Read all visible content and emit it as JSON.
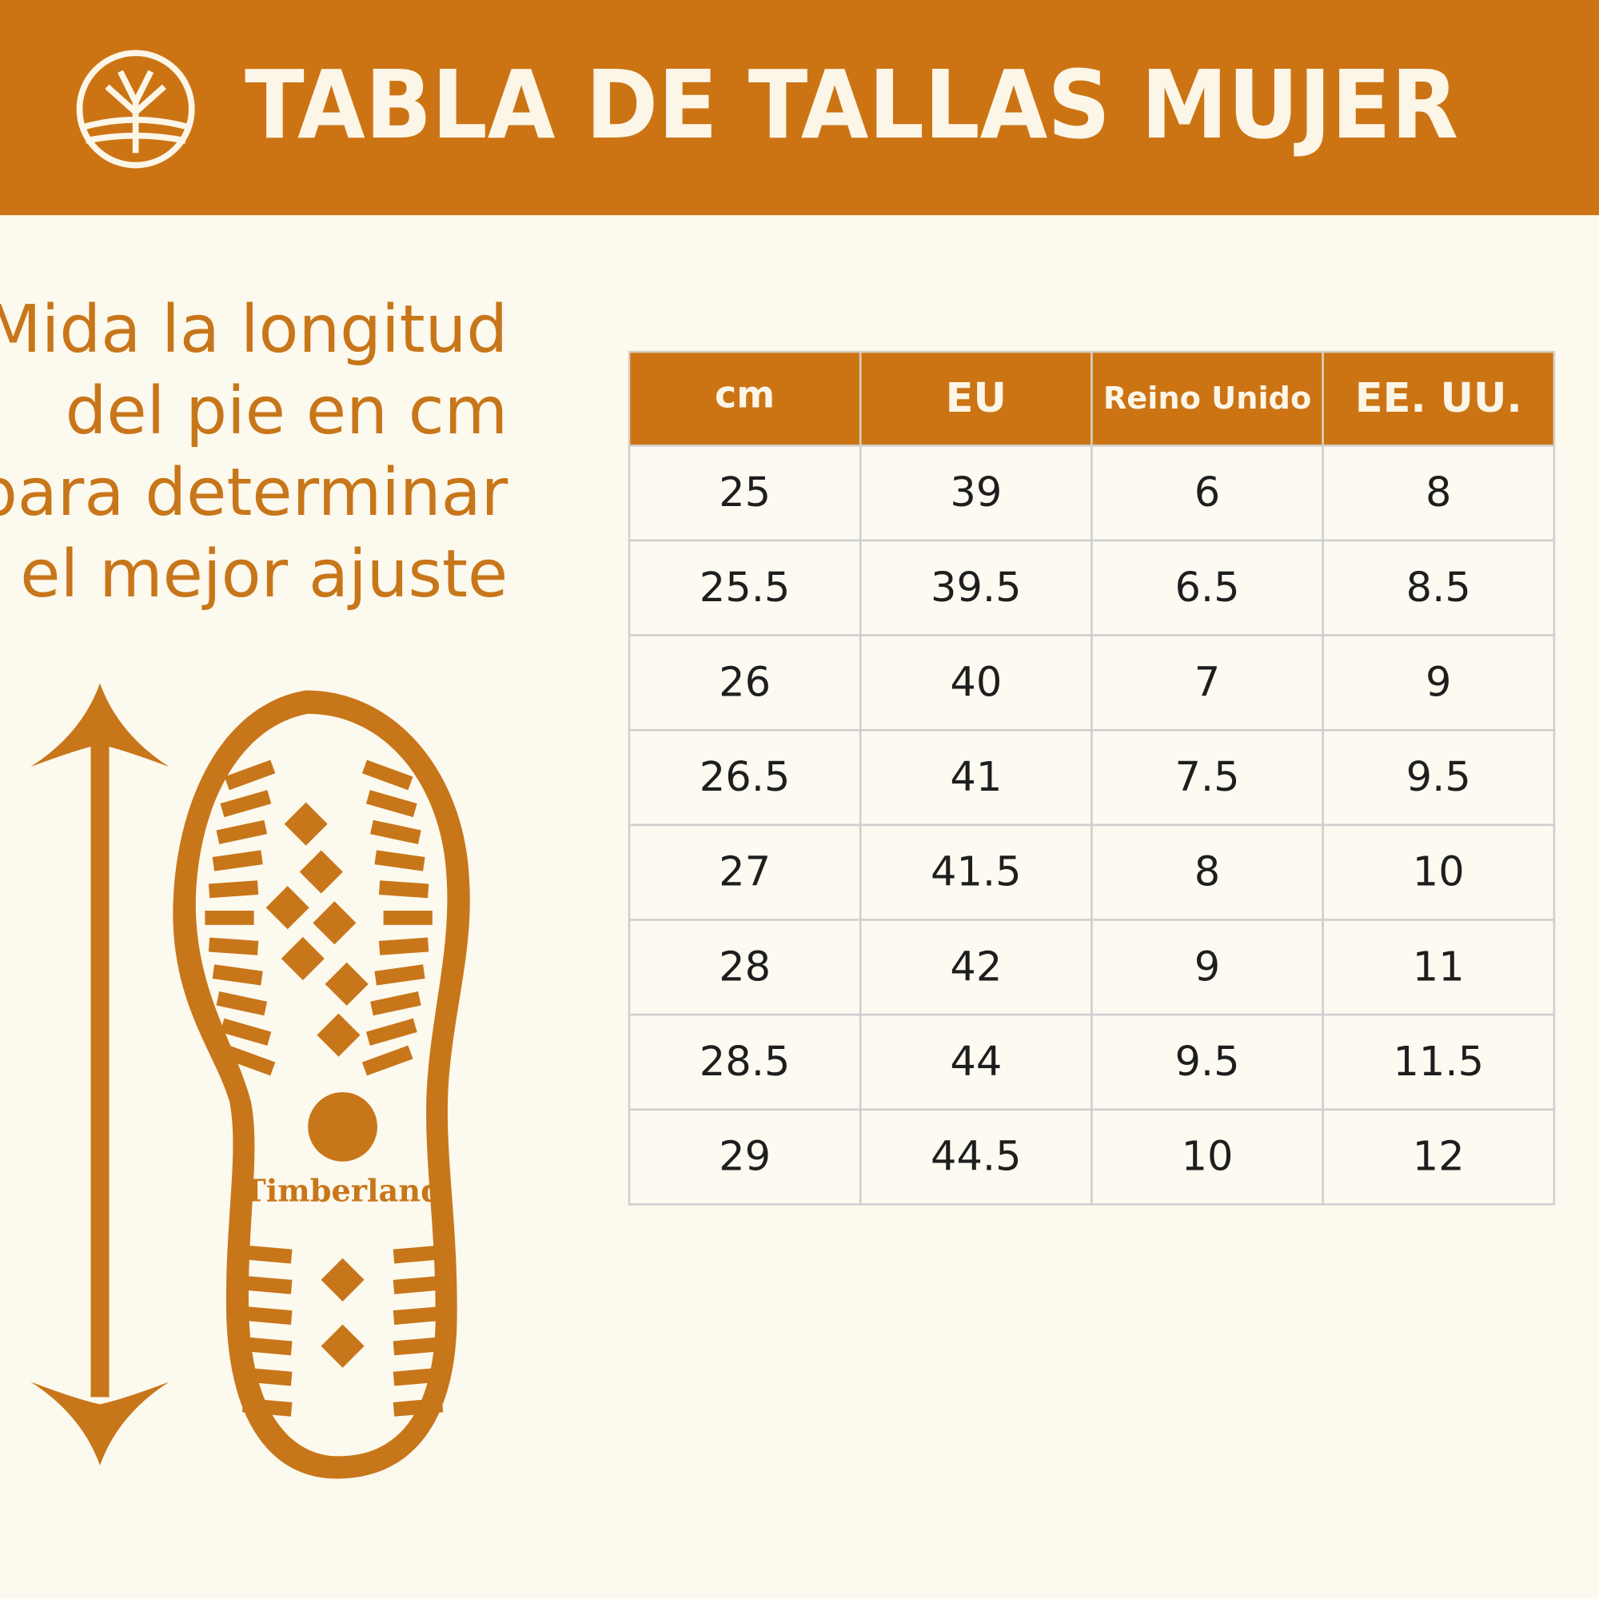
{
  "header": {
    "title": "TABLA DE TALLAS MUJER"
  },
  "instructions": [
    "Mida la longitud",
    "del pie en cm",
    "para determinar",
    "el mejor ajuste"
  ],
  "table": {
    "columns": [
      "cm",
      "EU",
      "Reino Unido",
      "EE. UU."
    ],
    "rows": [
      [
        25,
        39,
        6,
        8
      ],
      [
        25.5,
        39.5,
        6.5,
        8.5
      ],
      [
        26,
        40,
        7,
        9
      ],
      [
        26.5,
        41,
        7.5,
        9.5
      ],
      [
        27,
        41.5,
        8,
        10
      ],
      [
        28,
        42,
        9,
        11
      ],
      [
        28.5,
        44,
        9.5,
        11.5
      ],
      [
        29,
        44.5,
        10,
        12
      ]
    ]
  },
  "sole": {
    "brand": "Timberland"
  }
}
